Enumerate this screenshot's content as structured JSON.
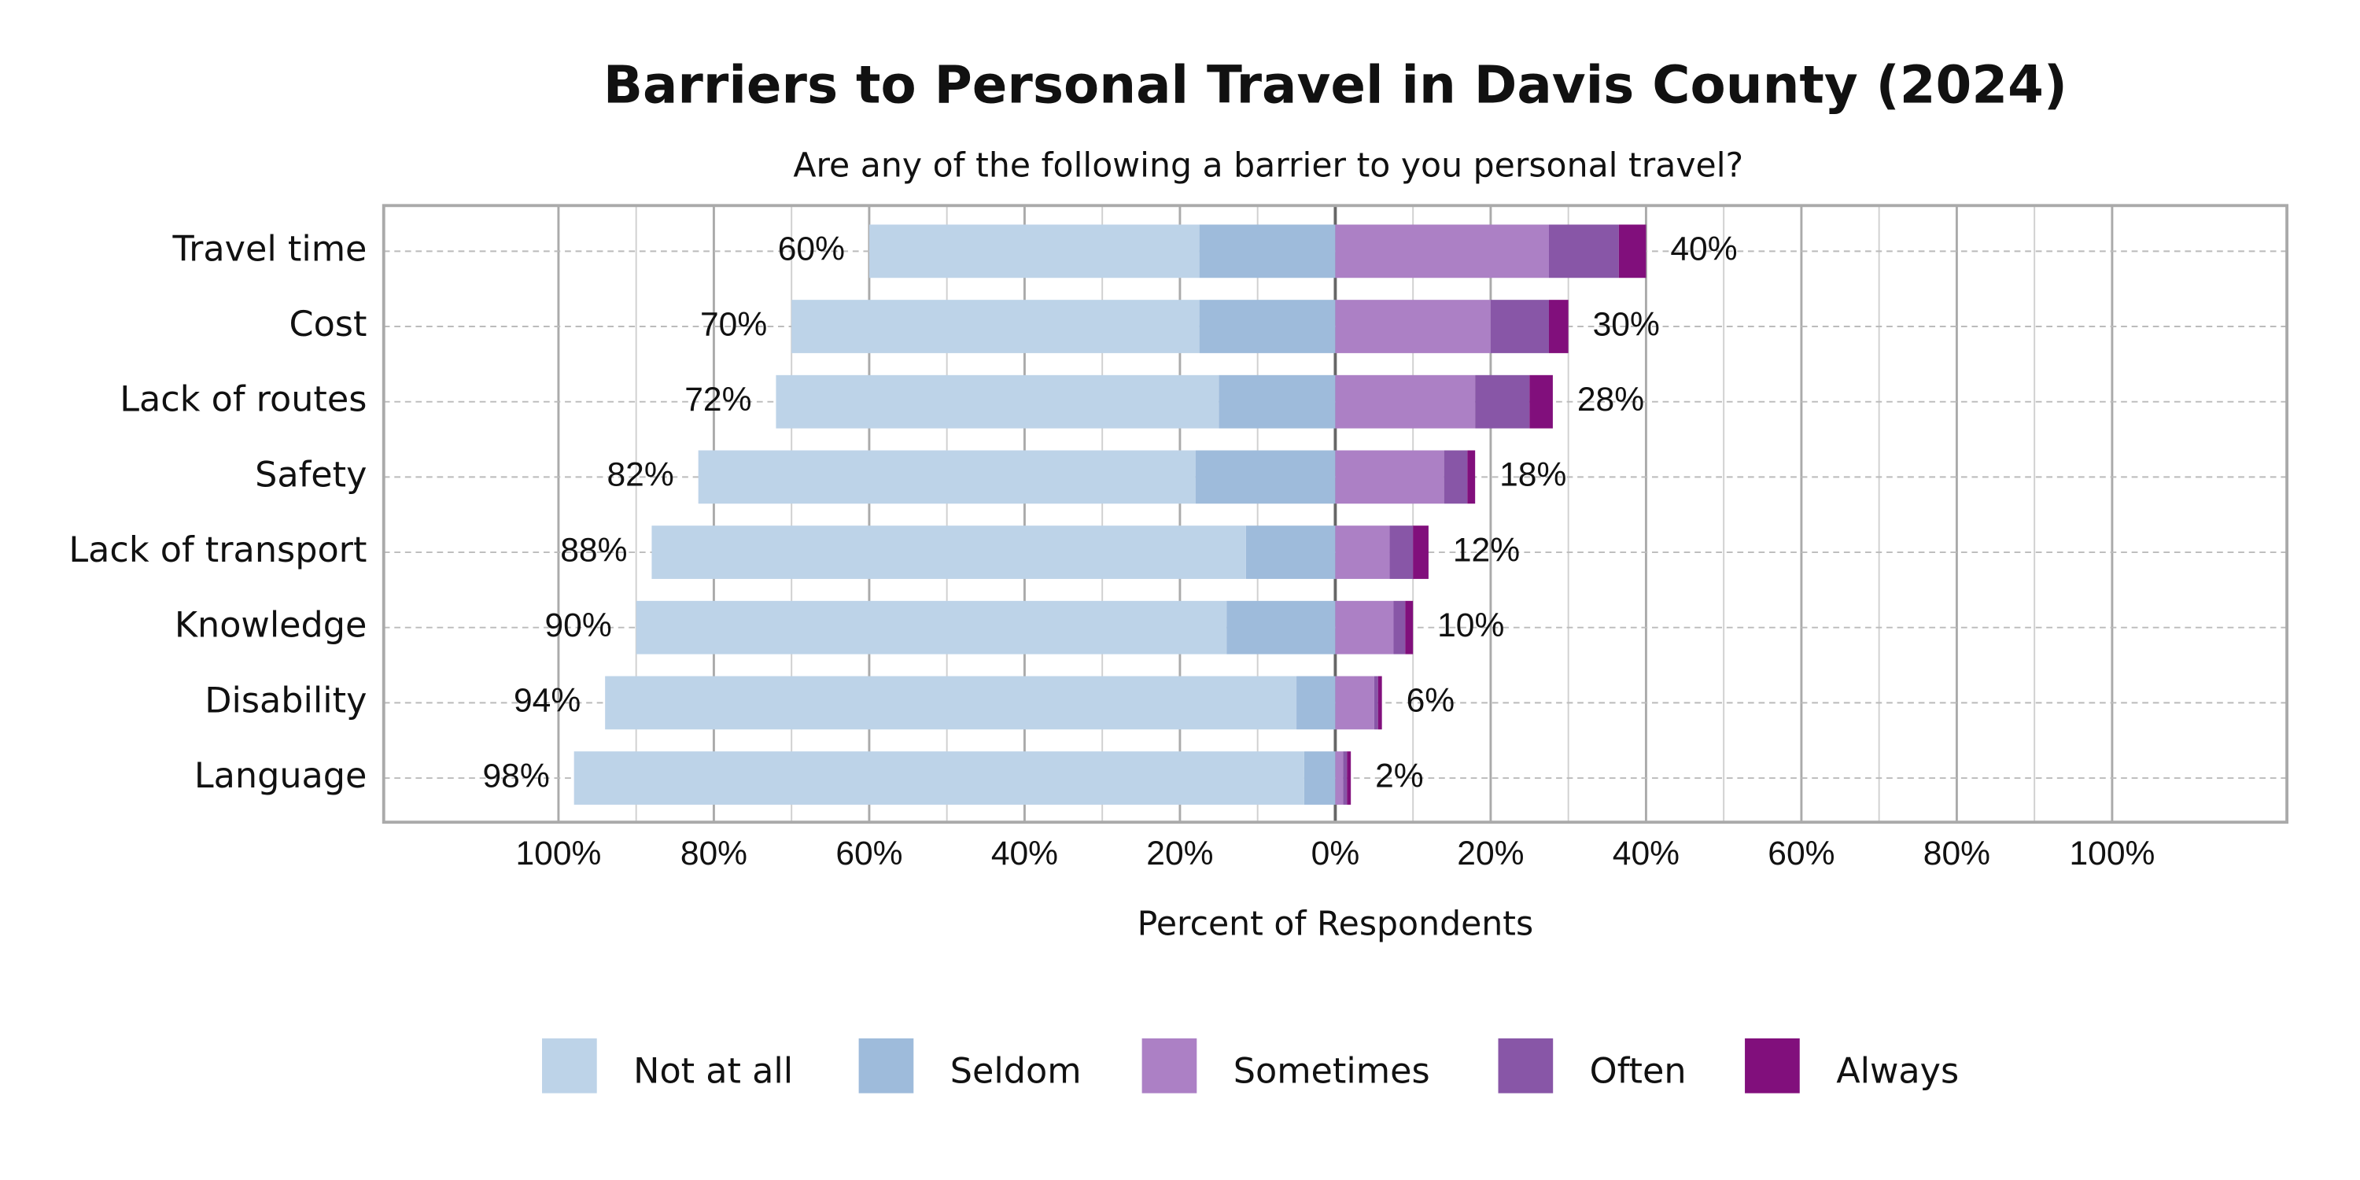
{
  "chart_data": {
    "type": "diverging-bar",
    "title": "Barriers to Personal Travel in Davis County (2024)",
    "subtitle": "Are any of the following a barrier to you personal travel?",
    "x_label": "Percent of Respondents",
    "categories": [
      "Travel time",
      "Cost",
      "Lack of routes",
      "Safety",
      "Lack of transport",
      "Knowledge",
      "Disability",
      "Language"
    ],
    "series": [
      {
        "name": "Not at all",
        "color": "#bdd3e8",
        "values": [
          -42.5,
          -52.5,
          -57,
          -64,
          -76.5,
          -76,
          -89,
          -94
        ]
      },
      {
        "name": "Seldom",
        "color": "#9ebbdb",
        "values": [
          -17.5,
          -17.5,
          -15,
          -18,
          -11.5,
          -14,
          -5,
          -4
        ]
      },
      {
        "name": "Sometimes",
        "color": "#ac80c5",
        "values": [
          27.5,
          20,
          18,
          14,
          7,
          7.5,
          5,
          1
        ]
      },
      {
        "name": "Often",
        "color": "#8856a7",
        "values": [
          9,
          7.5,
          7,
          3,
          3,
          1.5,
          0.5,
          0.5
        ]
      },
      {
        "name": "Always",
        "color": "#810f7c",
        "values": [
          3.5,
          2.5,
          3,
          1,
          2,
          1,
          0.5,
          0.5
        ]
      }
    ],
    "totals": {
      "left": {
        "values": [
          60,
          70,
          72,
          82,
          88,
          90,
          94,
          98
        ],
        "value_labels": [
          "60%",
          "70%",
          "72%",
          "82%",
          "88%",
          "90%",
          "94%",
          "98%"
        ]
      },
      "right": {
        "values": [
          40,
          30,
          28,
          18,
          12,
          10,
          6,
          2
        ],
        "value_labels": [
          "40%",
          "30%",
          "28%",
          "18%",
          "12%",
          "10%",
          "6%",
          "2%"
        ]
      }
    },
    "xlim": [
      -122.5,
      122.5
    ],
    "xticks": [
      {
        "value": -100,
        "label": "100%"
      },
      {
        "value": -80,
        "label": "80%"
      },
      {
        "value": -60,
        "label": "60%"
      },
      {
        "value": -40,
        "label": "40%"
      },
      {
        "value": -20,
        "label": "20%"
      },
      {
        "value": 0,
        "label": "0%"
      },
      {
        "value": 20,
        "label": "20%"
      },
      {
        "value": 40,
        "label": "40%"
      },
      {
        "value": 60,
        "label": "60%"
      },
      {
        "value": 80,
        "label": "80%"
      },
      {
        "value": 100,
        "label": "100%"
      }
    ],
    "xticks_minor": [
      -90,
      -70,
      -50,
      -30,
      -10,
      10,
      30,
      50,
      70,
      90
    ],
    "grid": true,
    "legend": "bottom"
  }
}
